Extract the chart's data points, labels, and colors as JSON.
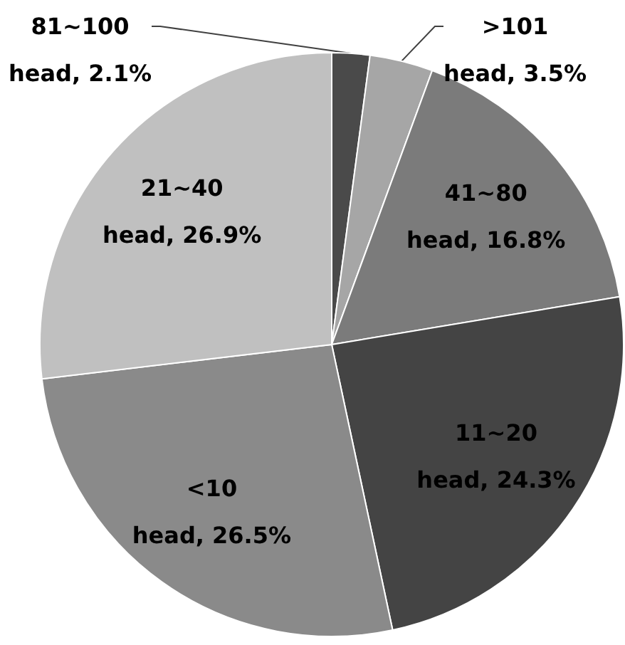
{
  "chart_data": {
    "type": "pie",
    "categories": [
      "81~100 head",
      ">101 head",
      "41~80 head",
      "11~20 head",
      "<10 head",
      "21~40 head"
    ],
    "values": [
      2.1,
      3.5,
      16.8,
      24.3,
      26.5,
      26.9
    ],
    "colors": [
      "#4a4a4a",
      "#a6a6a6",
      "#7b7b7b",
      "#444444",
      "#8a8a8a",
      "#c0c0c0"
    ],
    "value_labels": [
      "2.1%",
      "3.5%",
      "16.8%",
      "24.3%",
      "26.5%",
      "26.9%"
    ]
  }
}
